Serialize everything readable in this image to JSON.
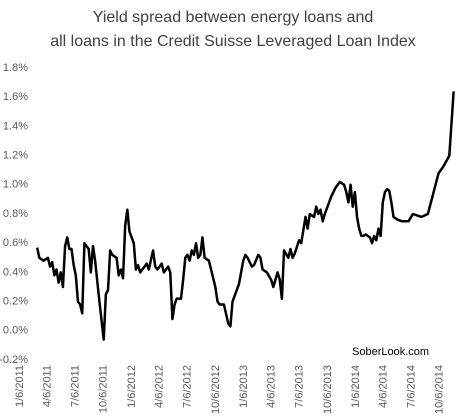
{
  "chart_data": {
    "type": "line",
    "title": [
      "Yield spread between energy loans and",
      "all loans in the Credit Suisse Leveraged Loan Index"
    ],
    "annotation": "SoberLook.com",
    "grid": false,
    "ylim": [
      -0.2,
      1.8
    ],
    "yticks": [
      {
        "value": 1.8,
        "label": "1.8%"
      },
      {
        "value": 1.6,
        "label": "1.6%"
      },
      {
        "value": 1.4,
        "label": "1.4%"
      },
      {
        "value": 1.2,
        "label": "1.2%"
      },
      {
        "value": 1.0,
        "label": "1.0%"
      },
      {
        "value": 0.8,
        "label": "0.8%"
      },
      {
        "value": 0.6,
        "label": "0.6%"
      },
      {
        "value": 0.4,
        "label": "0.4%"
      },
      {
        "value": 0.2,
        "label": "0.2%"
      },
      {
        "value": 0,
        "label": "0.0%"
      },
      {
        "value": -0.2,
        "label": "-0.2%"
      }
    ],
    "xlim": [
      "1/6/2011",
      "12/1/2014"
    ],
    "xticks": [
      "1/6/2011",
      "4/6/2011",
      "7/6/2011",
      "10/6/2011",
      "1/6/2012",
      "4/6/2012",
      "7/6/2012",
      "10/6/2012",
      "1/6/2013",
      "4/6/2013",
      "7/6/2013",
      "10/6/2013",
      "1/6/2014",
      "4/6/2014",
      "7/6/2014",
      "10/6/2014"
    ],
    "x": [
      "3/3/2011",
      "3/10/2011",
      "3/24/2011",
      "4/7/2011",
      "4/14/2011",
      "4/21/2011",
      "4/28/2011",
      "5/5/2011",
      "5/12/2011",
      "5/19/2011",
      "5/26/2011",
      "6/2/2011",
      "6/9/2011",
      "6/16/2011",
      "6/23/2011",
      "6/30/2011",
      "7/7/2011",
      "7/14/2011",
      "7/21/2011",
      "7/28/2011",
      "8/4/2011",
      "8/18/2011",
      "8/25/2011",
      "9/1/2011",
      "9/8/2011",
      "9/22/2011",
      "10/6/2011",
      "10/13/2011",
      "10/20/2011",
      "10/27/2011",
      "11/3/2011",
      "11/17/2011",
      "11/24/2011",
      "12/1/2011",
      "12/8/2011",
      "12/15/2011",
      "12/22/2011",
      "12/29/2011",
      "1/12/2012",
      "1/19/2012",
      "1/26/2012",
      "2/2/2012",
      "2/16/2012",
      "2/23/2012",
      "3/1/2012",
      "3/15/2012",
      "3/22/2012",
      "3/29/2012",
      "4/12/2012",
      "4/19/2012",
      "5/3/2012",
      "5/10/2012",
      "5/17/2012",
      "5/24/2012",
      "5/31/2012",
      "6/14/2012",
      "6/21/2012",
      "6/28/2012",
      "7/5/2012",
      "7/12/2012",
      "7/19/2012",
      "7/26/2012",
      "8/2/2012",
      "8/9/2012",
      "8/16/2012",
      "8/23/2012",
      "8/30/2012",
      "9/13/2012",
      "9/20/2012",
      "10/4/2012",
      "10/11/2012",
      "10/18/2012",
      "11/1/2012",
      "11/15/2012",
      "11/22/2012",
      "11/29/2012",
      "12/13/2012",
      "12/20/2012",
      "1/3/2013",
      "1/10/2013",
      "1/17/2013",
      "1/31/2013",
      "2/7/2013",
      "2/21/2013",
      "2/28/2013",
      "3/7/2013",
      "3/21/2013",
      "4/4/2013",
      "4/11/2013",
      "4/25/2013",
      "5/2/2013",
      "5/9/2013",
      "5/16/2013",
      "5/30/2013",
      "6/6/2013",
      "6/13/2013",
      "6/20/2013",
      "7/4/2013",
      "7/11/2013",
      "7/25/2013",
      "8/1/2013",
      "8/8/2013",
      "8/22/2013",
      "8/29/2013",
      "9/5/2013",
      "9/12/2013",
      "9/19/2013",
      "9/26/2013",
      "10/10/2013",
      "10/17/2013",
      "10/31/2013",
      "11/7/2013",
      "11/14/2013",
      "11/28/2013",
      "12/5/2013",
      "12/12/2013",
      "12/19/2013",
      "12/26/2013",
      "1/2/2014",
      "1/9/2014",
      "1/16/2014",
      "1/23/2014",
      "1/30/2014",
      "2/6/2014",
      "2/13/2014",
      "2/20/2014",
      "2/27/2014",
      "3/6/2014",
      "3/13/2014",
      "3/20/2014",
      "3/27/2014",
      "4/3/2014",
      "4/10/2014",
      "4/17/2014",
      "4/24/2014",
      "5/1/2014",
      "5/8/2014",
      "5/22/2014",
      "6/5/2014",
      "6/26/2014",
      "7/10/2014",
      "8/7/2014",
      "8/28/2014",
      "10/2/2014",
      "10/16/2014",
      "11/6/2014",
      "11/20/2014"
    ],
    "series": [
      {
        "color": "#000000",
        "values": [
          0.57,
          0.5,
          0.48,
          0.5,
          0.44,
          0.47,
          0.38,
          0.42,
          0.33,
          0.4,
          0.3,
          0.58,
          0.64,
          0.56,
          0.56,
          0.45,
          0.38,
          0.2,
          0.18,
          0.12,
          0.6,
          0.56,
          0.4,
          0.58,
          0.48,
          0.2,
          -0.06,
          0.25,
          0.28,
          0.55,
          0.52,
          0.5,
          0.38,
          0.42,
          0.36,
          0.72,
          0.83,
          0.68,
          0.6,
          0.42,
          0.45,
          0.4,
          0.44,
          0.46,
          0.42,
          0.55,
          0.44,
          0.42,
          0.46,
          0.4,
          0.44,
          0.4,
          0.08,
          0.18,
          0.22,
          0.22,
          0.35,
          0.5,
          0.52,
          0.48,
          0.55,
          0.52,
          0.6,
          0.5,
          0.52,
          0.64,
          0.5,
          0.48,
          0.42,
          0.3,
          0.2,
          0.18,
          0.18,
          0.05,
          0.03,
          0.2,
          0.28,
          0.32,
          0.48,
          0.52,
          0.5,
          0.44,
          0.45,
          0.52,
          0.5,
          0.42,
          0.4,
          0.35,
          0.3,
          0.4,
          0.35,
          0.22,
          0.55,
          0.5,
          0.56,
          0.5,
          0.53,
          0.62,
          0.6,
          0.78,
          0.7,
          0.8,
          0.78,
          0.85,
          0.8,
          0.83,
          0.75,
          0.8,
          0.88,
          0.92,
          0.98,
          1.0,
          1.02,
          1.0,
          0.95,
          0.88,
          1.0,
          0.85,
          0.95,
          0.78,
          0.7,
          0.65,
          0.65,
          0.66,
          0.65,
          0.64,
          0.6,
          0.65,
          0.62,
          0.7,
          0.65,
          0.88,
          0.95,
          0.97,
          0.96,
          0.88,
          0.78,
          0.76,
          0.75,
          0.75,
          0.8,
          0.78,
          0.8,
          1.08,
          1.12,
          1.2,
          1.64
        ]
      }
    ]
  }
}
